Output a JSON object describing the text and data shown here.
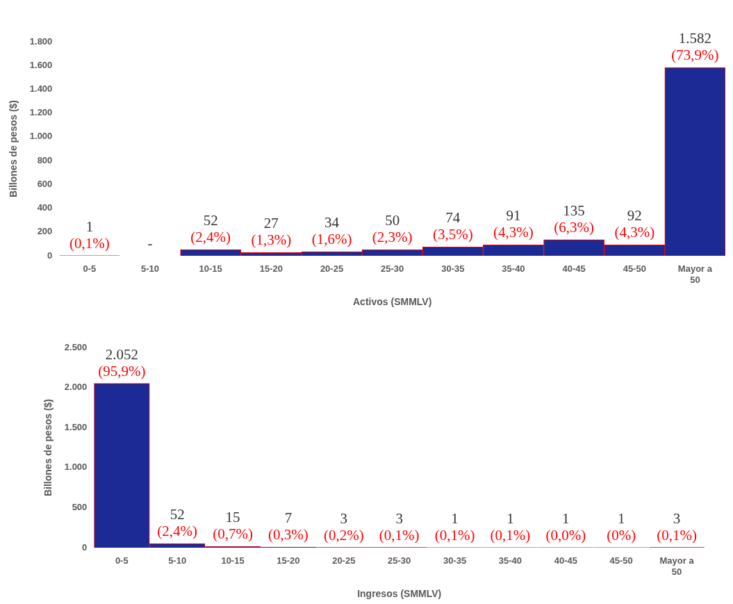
{
  "chart_data": [
    {
      "type": "bar",
      "xlabel": "Activos (SMMLV)",
      "ylabel": "Billones de pesos ($)",
      "color": "#1b2a94",
      "categories": [
        "0-5",
        "5-10",
        "10-15",
        "15-20",
        "20-25",
        "25-30",
        "30-35",
        "35-40",
        "40-45",
        "45-50",
        "Mayor a 50"
      ],
      "values": [
        1,
        0,
        52,
        27,
        34,
        50,
        74,
        91,
        135,
        92,
        1582
      ],
      "value_labels": [
        "1\n(0,1%)",
        "-",
        "52\n(2,4%)",
        "27\n(1,3%)",
        "34\n(1,6%)",
        "50\n(2,3%)",
        "74\n(3,5%)",
        "91\n(4,3%)",
        "135\n(6,3%)",
        "92\n(4,3%)",
        "1.582\n(73,9%)"
      ],
      "ylim": [
        0,
        1800
      ],
      "yticks": [
        0,
        200,
        400,
        600,
        800,
        {
          "value": 1000,
          "label": "1.000"
        },
        {
          "value": 1200,
          "label": "1.200"
        },
        {
          "value": 1400,
          "label": "1.400"
        },
        {
          "value": 1600,
          "label": "1.600"
        },
        {
          "value": 1800,
          "label": "1.800"
        }
      ],
      "grid": false,
      "legend": false
    },
    {
      "type": "bar",
      "xlabel": "Ingresos (SMMLV)",
      "ylabel": "Billones de pesos ($)",
      "color": "#1b2a94",
      "categories": [
        "0-5",
        "5-10",
        "10-15",
        "15-20",
        "20-25",
        "25-30",
        "30-35",
        "35-40",
        "40-45",
        "45-50",
        "Mayor a 50"
      ],
      "values": [
        2052,
        52,
        15,
        7,
        3,
        3,
        1,
        1,
        1,
        1,
        3
      ],
      "value_labels": [
        "2.052\n(95,9%)",
        "52\n(2,4%)",
        "15\n(0,7%)",
        "7\n(0,3%)",
        "3\n(0,2%)",
        "3\n(0,1%)",
        "1\n(0,1%)",
        "1\n(0,1%)",
        "1\n(0,0%)",
        "1\n(0%)",
        "3\n(0,1%)"
      ],
      "ylim": [
        0,
        2500
      ],
      "yticks": [
        0,
        500,
        {
          "value": 1000,
          "label": "1.000"
        },
        {
          "value": 1500,
          "label": "1.500"
        },
        {
          "value": 2000,
          "label": "2.000"
        },
        {
          "value": 2500,
          "label": "2.500"
        }
      ],
      "grid": false,
      "legend": false
    }
  ]
}
